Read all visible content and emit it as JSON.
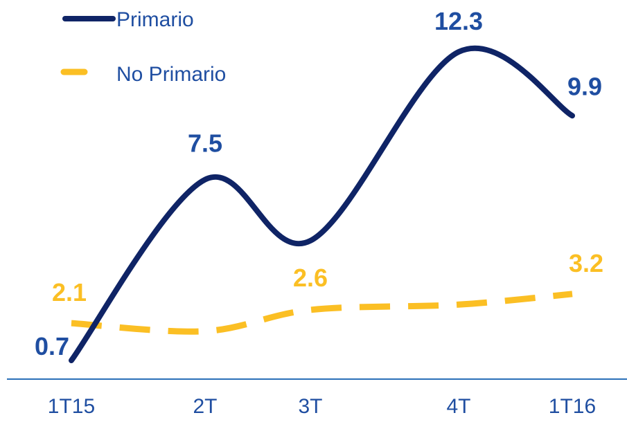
{
  "chart_data": {
    "type": "line",
    "title": "",
    "xlabel": "",
    "ylabel": "",
    "categories": [
      "1T15",
      "2T",
      "3T",
      "4T",
      "1T16"
    ],
    "ylim": [
      0,
      14
    ],
    "grid": false,
    "legend_position": "top-left",
    "series": [
      {
        "name": "Primario",
        "values": [
          0.7,
          7.5,
          5.2,
          12.3,
          9.9
        ],
        "labels": [
          "0.7",
          "7.5",
          "",
          "12.3",
          "9.9"
        ],
        "color": "#0f2466",
        "style": "solid"
      },
      {
        "name": "No Primario",
        "values": [
          2.1,
          1.8,
          2.6,
          2.8,
          3.2
        ],
        "labels": [
          "2.1",
          "",
          "2.6",
          "",
          "3.2"
        ],
        "color": "#fbbf24",
        "style": "dashed"
      }
    ]
  },
  "colors": {
    "axis": "#2a6fb8",
    "tick_text": "#1f4ea1",
    "primario_label": "#1f4ea1",
    "no_primario_label": "#fbbf24"
  }
}
